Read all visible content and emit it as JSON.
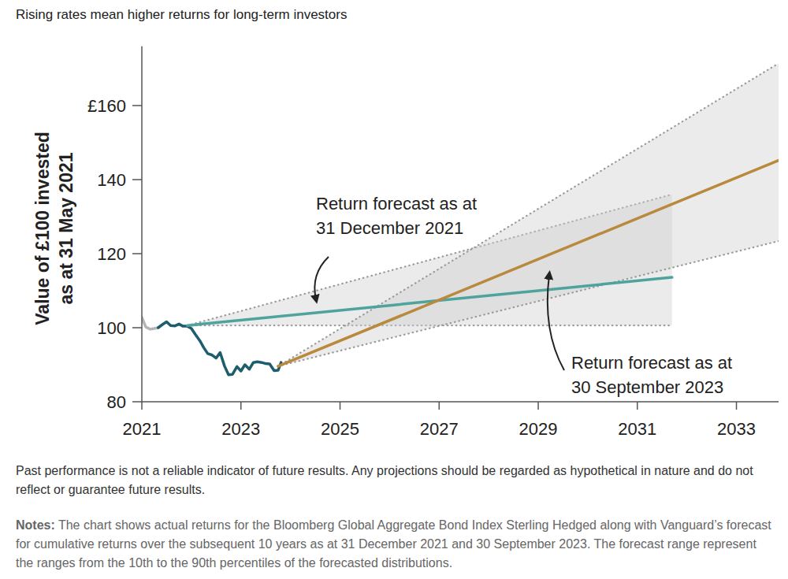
{
  "chart_data": {
    "type": "line",
    "title": "Rising rates mean higher returns for long-term investors",
    "y_label": [
      "Value of £100 invested",
      "as at 31 May 2021"
    ],
    "xlim": [
      2021,
      2033.85
    ],
    "xticks": [
      2021,
      2023,
      2025,
      2027,
      2029,
      2031,
      2033
    ],
    "ylim": [
      80,
      176
    ],
    "yticks": [
      80,
      100,
      120,
      140,
      {
        "value": 160,
        "label": "£160"
      }
    ],
    "series": [
      {
        "type": "line",
        "color": "#b5b5b5",
        "x": [
          2021.0,
          2021.08,
          2021.17,
          2021.25,
          2021.33
        ],
        "values": [
          102.8,
          100.2,
          99.6,
          99.8,
          100.0
        ]
      },
      {
        "type": "line",
        "color": "#1e5e6c",
        "x": [
          2021.33,
          2021.42,
          2021.5,
          2021.58,
          2021.67,
          2021.75,
          2021.83,
          2021.92,
          2022.0,
          2022.08,
          2022.17,
          2022.25,
          2022.33,
          2022.42,
          2022.5,
          2022.58,
          2022.67,
          2022.75,
          2022.83,
          2022.92,
          2023.0,
          2023.08,
          2023.17,
          2023.25,
          2023.33,
          2023.42,
          2023.5,
          2023.58,
          2023.67,
          2023.75,
          2023.81
        ],
        "values": [
          100.0,
          100.9,
          101.6,
          100.6,
          100.5,
          101.0,
          100.4,
          100.4,
          99.8,
          98.2,
          96.5,
          94.6,
          93.0,
          92.6,
          91.8,
          93.3,
          89.6,
          87.3,
          87.4,
          89.5,
          88.3,
          90.0,
          88.8,
          90.6,
          90.8,
          90.6,
          90.3,
          90.2,
          88.4,
          88.5,
          90.6
        ]
      },
      {
        "type": "area",
        "color": "#cfcfcf",
        "line_style": "dotted",
        "x": [
          2021.92,
          2031.7
        ],
        "values": [
          100.6,
          136.0
        ],
        "lower": [
          100.6,
          100.6
        ]
      },
      {
        "type": "area",
        "color": "#cfcfcf",
        "line_style": "dotted",
        "x": [
          2023.75,
          2033.85
        ],
        "values": [
          89.6,
          171.4
        ],
        "lower": [
          89.6,
          123.4
        ]
      },
      {
        "type": "line",
        "color": "#4ea39c",
        "x": [
          2021.92,
          2031.7
        ],
        "values": [
          100.6,
          113.6
        ]
      },
      {
        "type": "line",
        "color": "#b98a3e",
        "x": [
          2023.75,
          2033.85
        ],
        "values": [
          89.6,
          145.2
        ]
      }
    ],
    "annotations": [
      [
        "Return forecast as at",
        "31 December 2021"
      ],
      [
        "Return forecast as at",
        "30 September 2023"
      ]
    ],
    "disclaimer": "Past performance is not a reliable indicator of future results. Any projections should be regarded as hypothetical in nature and do not reflect or guarantee future results.",
    "notes_label": "Notes:",
    "notes": "The chart shows actual returns for the Bloomberg Global Aggregate Bond Index Sterling Hedged along with Vanguard’s forecast for cumulative returns over the subsequent 10 years as at 31 December 2021 and 30 September 2023. The forecast range represent the ranges from the 10th to the 90th percentiles of the forecasted distributions."
  }
}
